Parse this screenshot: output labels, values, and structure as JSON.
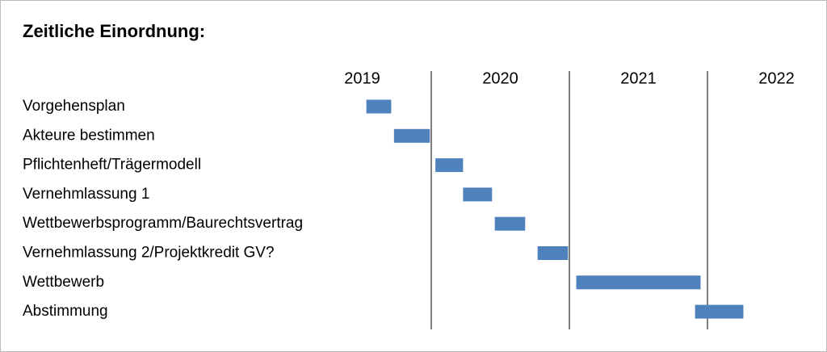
{
  "chart_data": {
    "type": "gantt",
    "title": "Zeitliche Einordnung:",
    "years": [
      2019,
      2020,
      2021,
      2022
    ],
    "xlim": [
      2019,
      2023
    ],
    "color": "#4f81bd",
    "tasks": [
      "Vorgehensplan",
      "Akteure bestimmen",
      "Pflichtenheft/Trägermodell",
      "Vernehmlassung 1",
      "Wettbewerbsprogramm/Baurechtsvertrag",
      "Vernehmlassung 2/Projektkredit GV?",
      "Wettbewerb",
      "Abstimmung"
    ],
    "start": [
      2019.53,
      2019.73,
      2020.03,
      2020.23,
      2020.46,
      2020.77,
      2021.05,
      2021.91
    ],
    "end": [
      2019.71,
      2019.99,
      2020.23,
      2020.44,
      2020.68,
      2020.99,
      2021.95,
      2022.26
    ]
  }
}
